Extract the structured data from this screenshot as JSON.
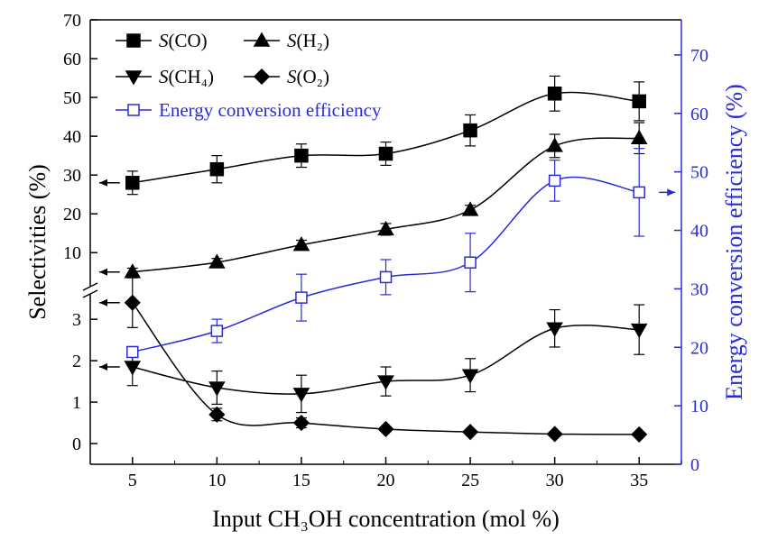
{
  "chart_data": {
    "type": "line",
    "xlabel": "Input CH₃OH concentration (mol %)",
    "ylabel": "Selectivities (%)",
    "y2label": "Energy conversion efficiency (%)",
    "x": [
      5,
      10,
      15,
      20,
      25,
      30,
      35
    ],
    "xlim": [
      2.5,
      37.5
    ],
    "xticks": [
      5,
      10,
      15,
      20,
      25,
      30,
      35
    ],
    "ylim": [
      -0.5,
      3.7
    ],
    "yticks": [
      0,
      1,
      2,
      3
    ],
    "ylim_upper": [
      0.3,
      70
    ],
    "yticks_upper": [
      10,
      20,
      30,
      40,
      50,
      60,
      70
    ],
    "y2lim": [
      0,
      76
    ],
    "y2ticks": [
      0,
      10,
      20,
      30,
      40,
      50,
      60,
      70
    ],
    "axis_break": true,
    "series": [
      {
        "name": "S(CO)",
        "color": "#000000",
        "marker": "square",
        "axis": "y_upper",
        "values": [
          28,
          31.5,
          35,
          35.5,
          41.5,
          51,
          49
        ],
        "errors": [
          3,
          3.5,
          3,
          3,
          4,
          4.5,
          5
        ]
      },
      {
        "name": "S(H₂)",
        "color": "#000000",
        "marker": "triangle-up",
        "axis": "y_upper",
        "values": [
          5,
          7.5,
          12,
          16,
          21,
          37.5,
          39.5
        ],
        "errors": [
          1,
          1,
          1.2,
          1.5,
          1.2,
          3,
          4
        ]
      },
      {
        "name": "S(CH₄)",
        "color": "#000000",
        "marker": "triangle-down",
        "axis": "y",
        "values": [
          1.85,
          1.35,
          1.2,
          1.5,
          1.65,
          2.78,
          2.75
        ],
        "errors": [
          0.45,
          0.4,
          0.45,
          0.35,
          0.4,
          0.45,
          0.6
        ]
      },
      {
        "name": "S(O₂)",
        "color": "#000000",
        "marker": "diamond",
        "axis": "y",
        "values": [
          3.4,
          0.7,
          0.5,
          0.35,
          0.28,
          0.23,
          0.22
        ],
        "errors": [
          0.6,
          0.15,
          0.12,
          0,
          0,
          0,
          0
        ]
      },
      {
        "name": "Energy conversion efficiency",
        "color": "#2b2bd6",
        "marker": "open-square",
        "axis": "y2",
        "values": [
          19.2,
          22.8,
          28.5,
          32,
          34.5,
          48.5,
          46.5
        ],
        "errors": [
          0,
          2,
          4,
          3,
          5,
          3.5,
          7.5
        ]
      }
    ]
  }
}
